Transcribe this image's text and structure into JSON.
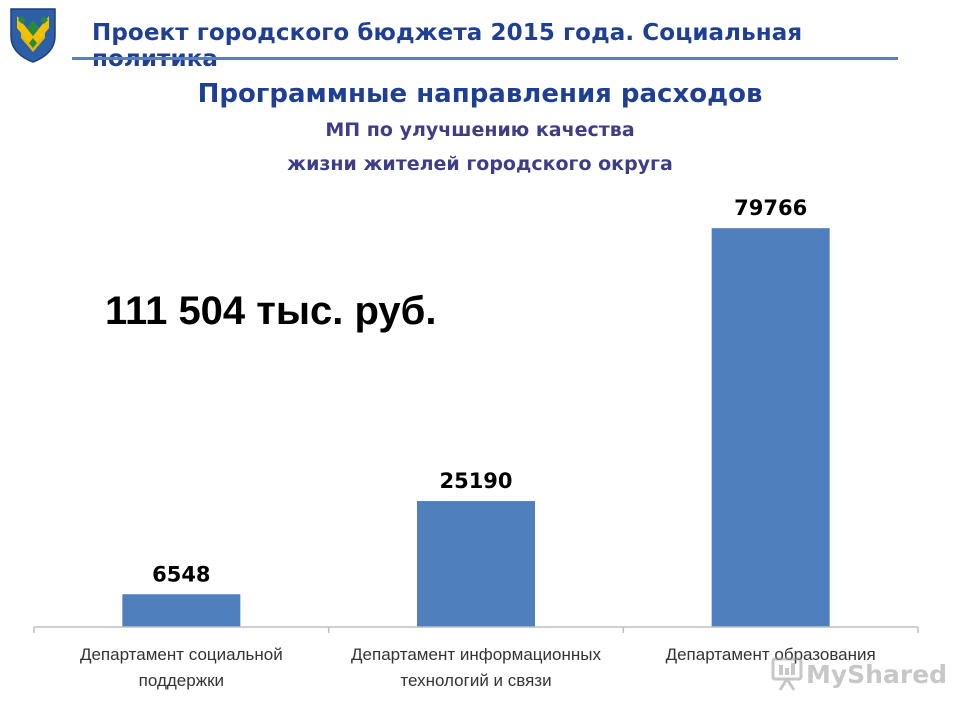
{
  "header": {
    "title": "Проект городского бюджета 2015 года. Социальная политика"
  },
  "logo": {
    "icon": "city-coat-of-arms-icon"
  },
  "main": {
    "title": "Программные направления расходов",
    "subtitle_line1": "МП по улучшению качества",
    "subtitle_line2": "жизни жителей городского округа",
    "total": "111 504 тыс. руб."
  },
  "chart_data": {
    "type": "bar",
    "categories": [
      [
        "Департамент социальной",
        "поддержки"
      ],
      [
        "Департамент информационных",
        "технологий и связи"
      ],
      [
        "Департамент образования"
      ]
    ],
    "values": [
      6548,
      25190,
      79766
    ],
    "data_labels": [
      "6548",
      "25190",
      "79766"
    ],
    "ylim": [
      0,
      80000
    ],
    "grid": false,
    "legend": "none",
    "bar_color": "#4f7fbd",
    "axis_color": "#bfbfbf"
  },
  "watermark": {
    "text": "MyShared",
    "icon": "presentation-board-icon"
  },
  "colors": {
    "title": "#1f3f95",
    "rule": "#5b7fbd",
    "bar": "#4f7fbd"
  }
}
